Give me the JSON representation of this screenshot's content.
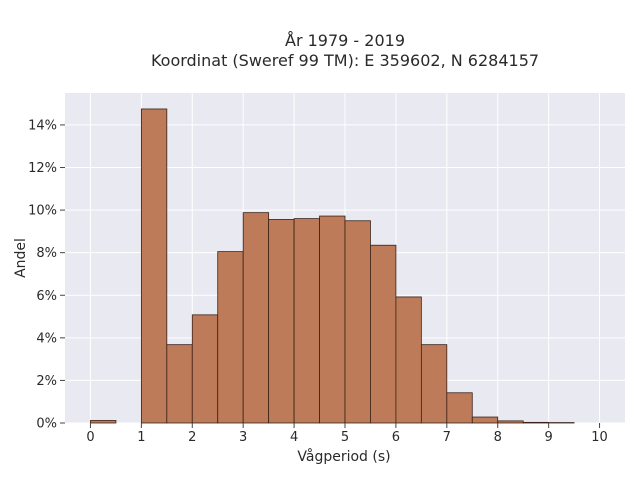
{
  "chart_data": {
    "type": "bar",
    "title_line1": "År 1979 - 2019",
    "title_line2": "Koordinat (Sweref 99 TM): E 359602, N 6284157",
    "xlabel": "Vågperiod (s)",
    "ylabel": "Andel",
    "xlim": [
      -0.5,
      10.5
    ],
    "ylim": [
      0,
      15.5
    ],
    "x_ticks": [
      "0",
      "1",
      "2",
      "3",
      "4",
      "5",
      "6",
      "7",
      "8",
      "9",
      "10"
    ],
    "y_ticks": [
      "0%",
      "2%",
      "4%",
      "6%",
      "8%",
      "10%",
      "12%",
      "14%"
    ],
    "bin_width": 0.5,
    "bins": [
      {
        "x": 0.0,
        "value": 0.12
      },
      {
        "x": 0.5,
        "value": 0.0
      },
      {
        "x": 1.0,
        "value": 14.75
      },
      {
        "x": 1.5,
        "value": 3.68
      },
      {
        "x": 2.0,
        "value": 5.08
      },
      {
        "x": 2.5,
        "value": 8.05
      },
      {
        "x": 3.0,
        "value": 9.88
      },
      {
        "x": 3.5,
        "value": 9.56
      },
      {
        "x": 4.0,
        "value": 9.6
      },
      {
        "x": 4.5,
        "value": 9.72
      },
      {
        "x": 5.0,
        "value": 9.5
      },
      {
        "x": 5.5,
        "value": 8.35
      },
      {
        "x": 6.0,
        "value": 5.92
      },
      {
        "x": 6.5,
        "value": 3.68
      },
      {
        "x": 7.0,
        "value": 1.42
      },
      {
        "x": 7.5,
        "value": 0.28
      },
      {
        "x": 8.0,
        "value": 0.1
      },
      {
        "x": 8.5,
        "value": 0.03
      },
      {
        "x": 9.0,
        "value": 0.02
      }
    ],
    "grid": true,
    "colors": {
      "bar_fill": "#bd7b59",
      "bar_edge": "#3a2218",
      "plot_bg": "#e9e9f1",
      "grid": "#ffffff"
    }
  }
}
